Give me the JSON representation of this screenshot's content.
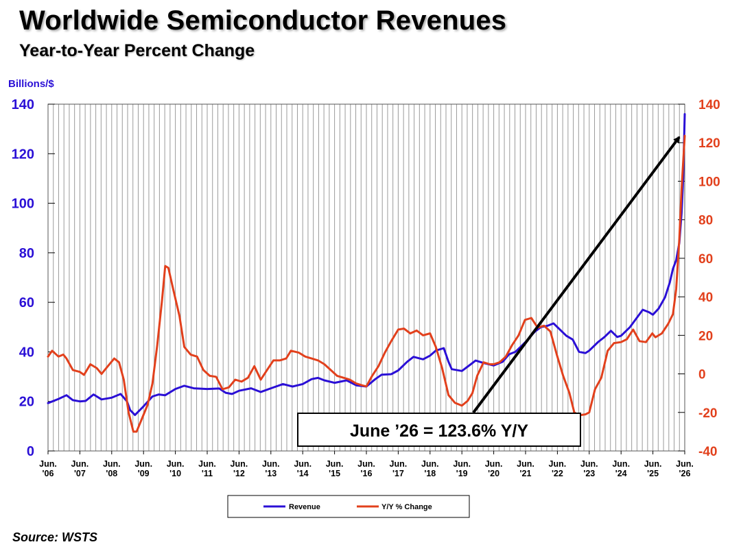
{
  "title": "Worldwide Semiconductor Revenues",
  "subtitle": "Year-to-Year Percent Change",
  "source": "Source: WSTS",
  "chart_data": {
    "type": "line",
    "y_left": {
      "label": "Billions/$",
      "range": [
        0,
        140
      ],
      "ticks": [
        0,
        20,
        40,
        60,
        80,
        100,
        120,
        140
      ]
    },
    "y_right": {
      "range": [
        -40,
        140
      ],
      "ticks": [
        -40,
        -20,
        0,
        20,
        40,
        60,
        80,
        100,
        120,
        140
      ]
    },
    "x_range": [
      2006.42,
      2026.42
    ],
    "x_ticks": [
      {
        "x": 2006.42,
        "l1": "Jun.",
        "l2": "'06"
      },
      {
        "x": 2007.42,
        "l1": "Jun.",
        "l2": "'07"
      },
      {
        "x": 2008.42,
        "l1": "Jun.",
        "l2": "'08"
      },
      {
        "x": 2009.42,
        "l1": "Jun.",
        "l2": "'09"
      },
      {
        "x": 2010.42,
        "l1": "Jun.",
        "l2": "'10"
      },
      {
        "x": 2011.42,
        "l1": "Jun.",
        "l2": "'11"
      },
      {
        "x": 2012.42,
        "l1": "Jun.",
        "l2": "'12"
      },
      {
        "x": 2013.42,
        "l1": "Jun.",
        "l2": "'13"
      },
      {
        "x": 2014.42,
        "l1": "Jun.",
        "l2": "'14"
      },
      {
        "x": 2015.42,
        "l1": "Jun.",
        "l2": "'15"
      },
      {
        "x": 2016.42,
        "l1": "Jun.",
        "l2": "'16"
      },
      {
        "x": 2017.42,
        "l1": "Jun.",
        "l2": "'17"
      },
      {
        "x": 2018.42,
        "l1": "Jun.",
        "l2": "'18"
      },
      {
        "x": 2019.42,
        "l1": "Jun.",
        "l2": "'19"
      },
      {
        "x": 2020.42,
        "l1": "Jun.",
        "l2": "'20"
      },
      {
        "x": 2021.42,
        "l1": "Jun.",
        "l2": "'21"
      },
      {
        "x": 2022.42,
        "l1": "Jun.",
        "l2": "'22"
      },
      {
        "x": 2023.42,
        "l1": "Jun.",
        "l2": "'23"
      },
      {
        "x": 2024.42,
        "l1": "Jun.",
        "l2": "'24"
      },
      {
        "x": 2025.42,
        "l1": "Jun.",
        "l2": "'25"
      },
      {
        "x": 2026.42,
        "l1": "Jun.",
        "l2": "'26"
      }
    ],
    "grid": "vertical-monthly",
    "legend_position": "bottom-center",
    "series": [
      {
        "name": "Revenue",
        "axis": "left",
        "color": "#2a0fd6",
        "points": [
          [
            2006.42,
            19.3
          ],
          [
            2006.75,
            21
          ],
          [
            2007.0,
            22.5
          ],
          [
            2007.2,
            20.5
          ],
          [
            2007.42,
            20
          ],
          [
            2007.6,
            20.2
          ],
          [
            2007.85,
            22.8
          ],
          [
            2008.1,
            20.8
          ],
          [
            2008.42,
            21.5
          ],
          [
            2008.7,
            23
          ],
          [
            2008.9,
            20
          ],
          [
            2009.0,
            16.5
          ],
          [
            2009.15,
            14.5
          ],
          [
            2009.42,
            18
          ],
          [
            2009.7,
            22
          ],
          [
            2009.9,
            22.8
          ],
          [
            2010.1,
            22.5
          ],
          [
            2010.42,
            25
          ],
          [
            2010.7,
            26.3
          ],
          [
            2011.0,
            25.3
          ],
          [
            2011.42,
            25
          ],
          [
            2011.8,
            25.2
          ],
          [
            2012.0,
            23.5
          ],
          [
            2012.2,
            23
          ],
          [
            2012.42,
            24.3
          ],
          [
            2012.8,
            25.3
          ],
          [
            2013.1,
            23.8
          ],
          [
            2013.42,
            25.3
          ],
          [
            2013.8,
            27
          ],
          [
            2014.1,
            26
          ],
          [
            2014.42,
            27
          ],
          [
            2014.7,
            29
          ],
          [
            2014.9,
            29.5
          ],
          [
            2015.1,
            28.5
          ],
          [
            2015.42,
            27.5
          ],
          [
            2015.8,
            28.5
          ],
          [
            2016.1,
            26.5
          ],
          [
            2016.42,
            26
          ],
          [
            2016.7,
            29
          ],
          [
            2016.9,
            30.8
          ],
          [
            2017.2,
            31
          ],
          [
            2017.42,
            32.5
          ],
          [
            2017.7,
            36
          ],
          [
            2017.9,
            38
          ],
          [
            2018.2,
            37
          ],
          [
            2018.42,
            38.5
          ],
          [
            2018.6,
            40.5
          ],
          [
            2018.85,
            41.5
          ],
          [
            2019.0,
            36
          ],
          [
            2019.1,
            33
          ],
          [
            2019.42,
            32.3
          ],
          [
            2019.7,
            35
          ],
          [
            2019.85,
            36.5
          ],
          [
            2020.1,
            35.5
          ],
          [
            2020.42,
            34.5
          ],
          [
            2020.7,
            36
          ],
          [
            2020.9,
            39
          ],
          [
            2021.1,
            40
          ],
          [
            2021.42,
            44
          ],
          [
            2021.7,
            48
          ],
          [
            2021.9,
            50
          ],
          [
            2022.1,
            50.5
          ],
          [
            2022.3,
            51.5
          ],
          [
            2022.5,
            49
          ],
          [
            2022.7,
            46.5
          ],
          [
            2022.9,
            45
          ],
          [
            2023.1,
            40
          ],
          [
            2023.3,
            39.5
          ],
          [
            2023.42,
            40.5
          ],
          [
            2023.7,
            44
          ],
          [
            2023.9,
            46
          ],
          [
            2024.1,
            48.5
          ],
          [
            2024.3,
            46
          ],
          [
            2024.42,
            46.5
          ],
          [
            2024.7,
            50
          ],
          [
            2024.9,
            53.5
          ],
          [
            2025.1,
            57
          ],
          [
            2025.3,
            56
          ],
          [
            2025.42,
            55
          ],
          [
            2025.6,
            57.5
          ],
          [
            2025.8,
            62
          ],
          [
            2025.95,
            68
          ],
          [
            2026.05,
            73.5
          ],
          [
            2026.15,
            77
          ],
          [
            2026.25,
            84
          ],
          [
            2026.32,
            96
          ],
          [
            2026.37,
            110
          ],
          [
            2026.42,
            136
          ]
        ]
      },
      {
        "name": "Y/Y % Change",
        "axis": "right",
        "color": "#e2401c",
        "points": [
          [
            2006.42,
            9
          ],
          [
            2006.55,
            12
          ],
          [
            2006.75,
            9
          ],
          [
            2006.9,
            10
          ],
          [
            2007.0,
            8
          ],
          [
            2007.2,
            2
          ],
          [
            2007.42,
            1
          ],
          [
            2007.55,
            -0.5
          ],
          [
            2007.75,
            5
          ],
          [
            2007.95,
            3
          ],
          [
            2008.1,
            0
          ],
          [
            2008.3,
            4
          ],
          [
            2008.5,
            8
          ],
          [
            2008.65,
            6
          ],
          [
            2008.8,
            -3
          ],
          [
            2008.95,
            -20
          ],
          [
            2009.1,
            -30
          ],
          [
            2009.2,
            -30
          ],
          [
            2009.35,
            -24
          ],
          [
            2009.55,
            -16
          ],
          [
            2009.7,
            -5
          ],
          [
            2009.85,
            15
          ],
          [
            2010.0,
            38
          ],
          [
            2010.1,
            56
          ],
          [
            2010.2,
            55
          ],
          [
            2010.35,
            44
          ],
          [
            2010.55,
            30
          ],
          [
            2010.7,
            14
          ],
          [
            2010.9,
            10
          ],
          [
            2011.1,
            9
          ],
          [
            2011.3,
            2
          ],
          [
            2011.5,
            -1
          ],
          [
            2011.7,
            -1.5
          ],
          [
            2011.9,
            -8
          ],
          [
            2012.1,
            -7
          ],
          [
            2012.3,
            -3
          ],
          [
            2012.5,
            -4
          ],
          [
            2012.7,
            -2
          ],
          [
            2012.9,
            4
          ],
          [
            2013.1,
            -3
          ],
          [
            2013.3,
            2
          ],
          [
            2013.5,
            7
          ],
          [
            2013.7,
            7
          ],
          [
            2013.9,
            8
          ],
          [
            2014.05,
            12
          ],
          [
            2014.3,
            11
          ],
          [
            2014.5,
            9
          ],
          [
            2014.7,
            8
          ],
          [
            2014.9,
            7
          ],
          [
            2015.1,
            5
          ],
          [
            2015.3,
            2
          ],
          [
            2015.5,
            -1
          ],
          [
            2015.7,
            -2
          ],
          [
            2015.9,
            -3
          ],
          [
            2016.1,
            -5
          ],
          [
            2016.3,
            -6
          ],
          [
            2016.42,
            -6.5
          ],
          [
            2016.6,
            -1
          ],
          [
            2016.8,
            4
          ],
          [
            2017.0,
            11
          ],
          [
            2017.2,
            17
          ],
          [
            2017.42,
            23
          ],
          [
            2017.6,
            23.5
          ],
          [
            2017.8,
            21
          ],
          [
            2018.0,
            22.5
          ],
          [
            2018.2,
            20
          ],
          [
            2018.42,
            21
          ],
          [
            2018.6,
            14
          ],
          [
            2018.8,
            3
          ],
          [
            2019.0,
            -11
          ],
          [
            2019.2,
            -15
          ],
          [
            2019.42,
            -16.5
          ],
          [
            2019.6,
            -14
          ],
          [
            2019.75,
            -10
          ],
          [
            2019.9,
            -1
          ],
          [
            2020.1,
            6
          ],
          [
            2020.3,
            5
          ],
          [
            2020.42,
            5
          ],
          [
            2020.6,
            6
          ],
          [
            2020.8,
            9
          ],
          [
            2021.0,
            15
          ],
          [
            2021.2,
            20
          ],
          [
            2021.4,
            28
          ],
          [
            2021.6,
            29
          ],
          [
            2021.8,
            24
          ],
          [
            2022.0,
            25
          ],
          [
            2022.2,
            22
          ],
          [
            2022.4,
            10
          ],
          [
            2022.6,
            -1
          ],
          [
            2022.8,
            -10
          ],
          [
            2022.95,
            -20
          ],
          [
            2023.1,
            -21.5
          ],
          [
            2023.3,
            -21
          ],
          [
            2023.42,
            -20
          ],
          [
            2023.6,
            -8
          ],
          [
            2023.8,
            -2
          ],
          [
            2024.0,
            12
          ],
          [
            2024.2,
            16
          ],
          [
            2024.42,
            16.5
          ],
          [
            2024.6,
            18
          ],
          [
            2024.8,
            23
          ],
          [
            2025.0,
            17
          ],
          [
            2025.2,
            16.5
          ],
          [
            2025.4,
            21
          ],
          [
            2025.5,
            19
          ],
          [
            2025.7,
            21
          ],
          [
            2025.9,
            26
          ],
          [
            2026.05,
            31
          ],
          [
            2026.15,
            44
          ],
          [
            2026.25,
            70
          ],
          [
            2026.32,
            96
          ],
          [
            2026.42,
            123.6
          ]
        ]
      }
    ],
    "annotation": {
      "text": "June ’26 = 123.6% Y/Y",
      "arrow_to": [
        2026.42,
        123.6
      ]
    }
  }
}
